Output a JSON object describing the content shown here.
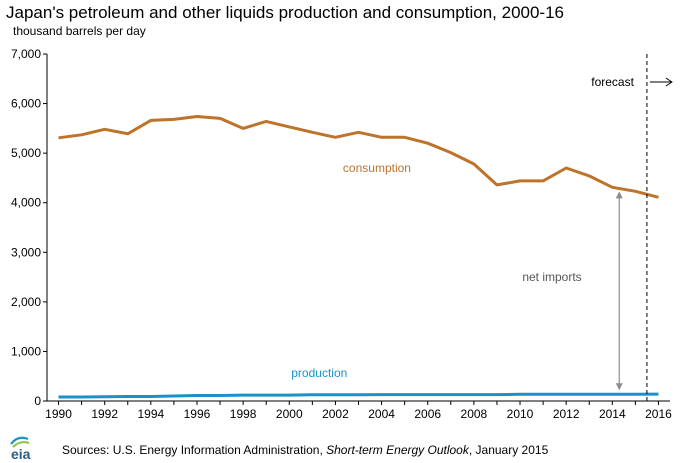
{
  "chart_data": {
    "type": "line",
    "title": "Japan's petroleum and other liquids production and consumption, 2000-16",
    "subtitle": "thousand barrels per day",
    "xlabel": "",
    "ylabel": "thousand barrels per day",
    "xlim": [
      1989.5,
      2016.5
    ],
    "ylim": [
      0,
      7000
    ],
    "yticks": [
      0,
      1000,
      2000,
      3000,
      4000,
      5000,
      6000,
      7000
    ],
    "ytick_labels": [
      "0",
      "1,000",
      "2,000",
      "3,000",
      "4,000",
      "5,000",
      "6,000",
      "7,000"
    ],
    "xticks": [
      1990,
      1992,
      1994,
      1996,
      1998,
      2000,
      2002,
      2004,
      2006,
      2008,
      2010,
      2012,
      2014,
      2016
    ],
    "xtick_labels": [
      "1990",
      "1992",
      "1994",
      "1996",
      "1998",
      "2000",
      "2002",
      "2004",
      "2006",
      "2008",
      "2010",
      "2012",
      "2014",
      "2016"
    ],
    "grid": false,
    "x": [
      1990,
      1991,
      1992,
      1993,
      1994,
      1995,
      1996,
      1997,
      1998,
      1999,
      2000,
      2001,
      2002,
      2003,
      2004,
      2005,
      2006,
      2007,
      2008,
      2009,
      2010,
      2011,
      2012,
      2013,
      2014,
      2015,
      2016
    ],
    "series": [
      {
        "name": "consumption",
        "color": "#bd732a",
        "values": [
          5310,
          5370,
          5480,
          5390,
          5660,
          5680,
          5740,
          5700,
          5500,
          5640,
          5530,
          5420,
          5320,
          5420,
          5320,
          5320,
          5200,
          5010,
          4780,
          4360,
          4440,
          4440,
          4700,
          4540,
          4310,
          4230,
          4110
        ]
      },
      {
        "name": "production",
        "color": "#1a91c8",
        "values": [
          80,
          80,
          85,
          90,
          90,
          100,
          110,
          110,
          120,
          120,
          120,
          125,
          125,
          125,
          130,
          130,
          130,
          130,
          130,
          130,
          135,
          135,
          135,
          135,
          135,
          135,
          140
        ]
      }
    ],
    "forecast_start": 2015.5,
    "annotations": {
      "forecast": "forecast",
      "net_imports": "net imports",
      "consumption_label": "consumption",
      "production_label": "production"
    },
    "source": "Sources: U.S. Energy Information Administration, Short-term Energy Outlook, January 2015",
    "source_prefix": "Sources: U.S. Energy Information Administration, ",
    "source_italic": "Short-term Energy Outlook",
    "source_suffix": ", January 2015",
    "logo_text": "eia"
  }
}
